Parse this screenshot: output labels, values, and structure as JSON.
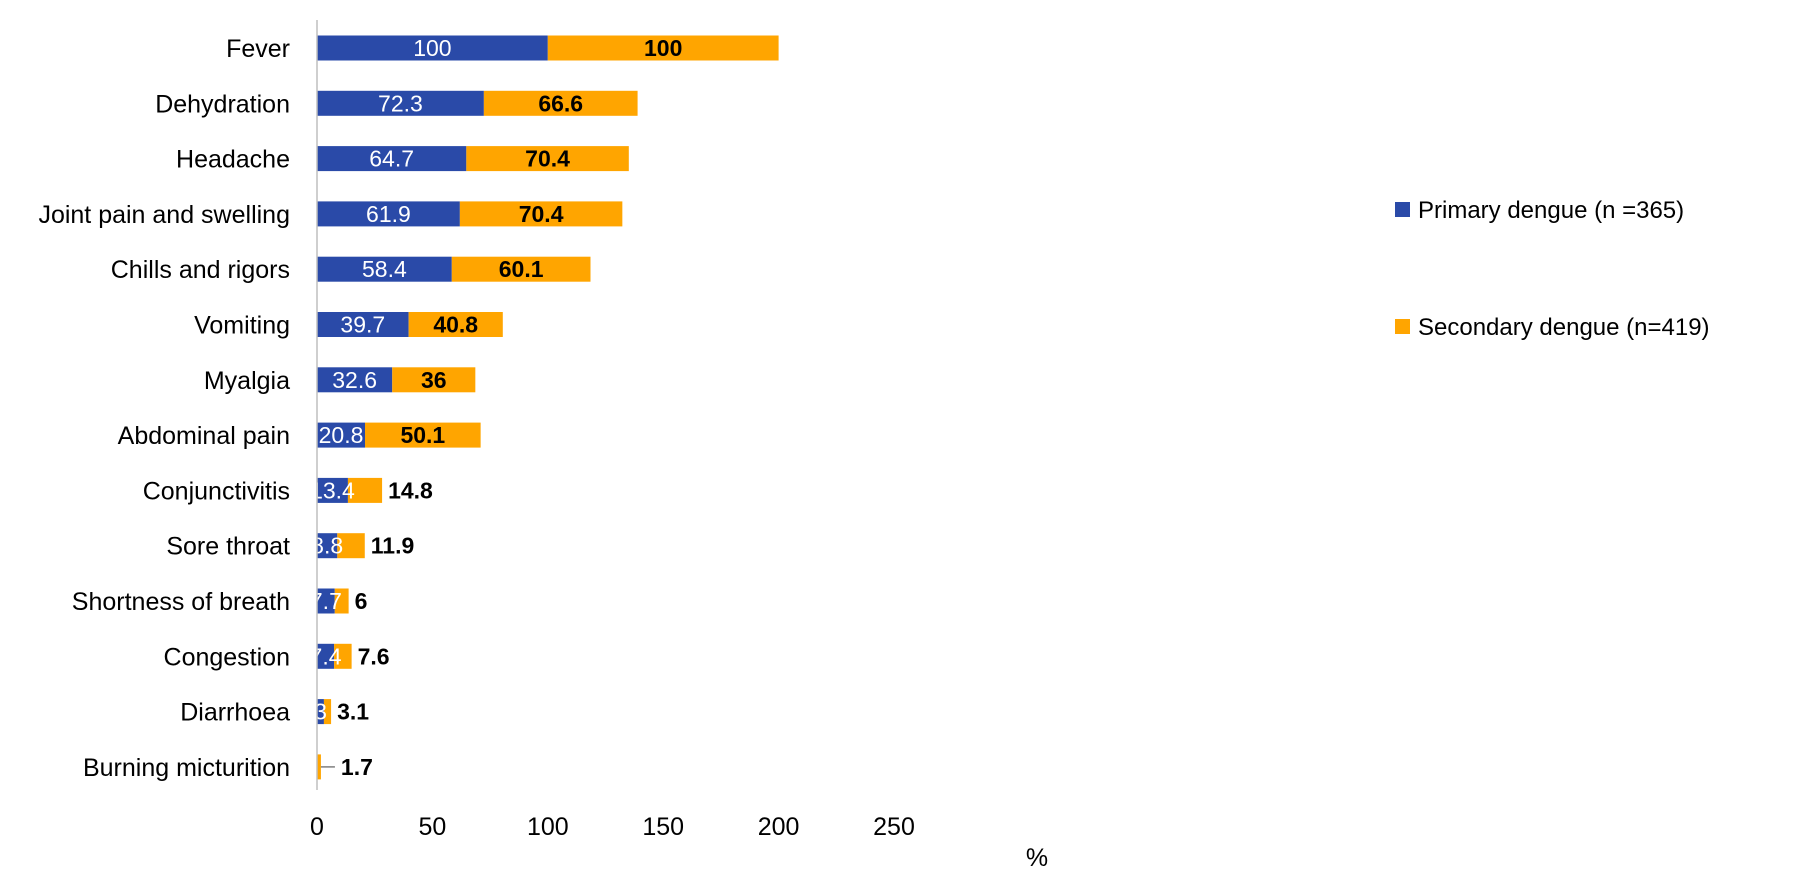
{
  "chart_data": {
    "type": "bar",
    "orientation": "horizontal",
    "stacked": true,
    "categories": [
      "Fever",
      "Dehydration",
      "Headache",
      "Joint pain and swelling",
      "Chills and rigors",
      "Vomiting",
      "Myalgia",
      "Abdominal pain",
      "Conjunctivitis",
      "Sore throat",
      "Shortness of breath",
      "Congestion",
      "Diarrhoea",
      "Burning micturition"
    ],
    "series": [
      {
        "name": "Primary dengue (n =365)",
        "color": "#2a4aa8",
        "values": [
          100,
          72.3,
          64.7,
          61.9,
          58.4,
          39.7,
          32.6,
          20.8,
          13.4,
          8.8,
          7.7,
          7.4,
          3,
          null
        ]
      },
      {
        "name": "Secondary dengue (n=419)",
        "color": "#ffa500",
        "values": [
          100,
          66.6,
          70.4,
          70.4,
          60.1,
          40.8,
          36,
          50.1,
          14.8,
          11.9,
          6,
          7.6,
          3.1,
          1.7
        ]
      }
    ],
    "xlabel": "%",
    "ylabel": "",
    "xlim": [
      0,
      250
    ],
    "xticks": [
      0,
      50,
      100,
      150,
      200,
      250
    ],
    "grid": false,
    "legend_position": "right"
  }
}
